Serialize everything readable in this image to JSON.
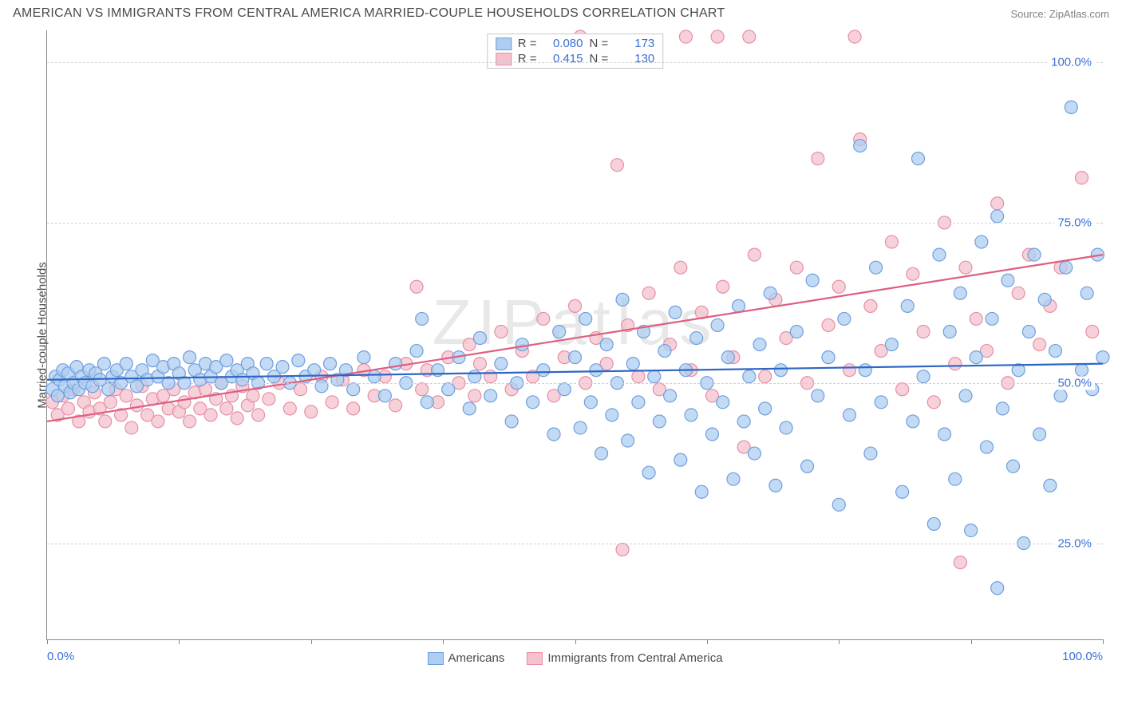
{
  "header": {
    "title": "AMERICAN VS IMMIGRANTS FROM CENTRAL AMERICA MARRIED-COUPLE HOUSEHOLDS CORRELATION CHART",
    "source_prefix": "Source: ",
    "source_name": "ZipAtlas.com"
  },
  "watermark": "ZIPatlas",
  "axes": {
    "y_title": "Married-couple Households",
    "x_min": 0,
    "x_max": 100,
    "y_min": 10,
    "y_max": 105,
    "y_ticks": [
      {
        "v": 25,
        "label": "25.0%"
      },
      {
        "v": 50,
        "label": "50.0%"
      },
      {
        "v": 75,
        "label": "75.0%"
      },
      {
        "v": 100,
        "label": "100.0%"
      }
    ],
    "x_tick_positions": [
      0,
      12.5,
      25,
      37.5,
      50,
      62.5,
      75,
      87.5,
      100
    ],
    "x_tick_labels": [
      {
        "v": 0,
        "label": "0.0%"
      },
      {
        "v": 100,
        "label": "100.0%"
      }
    ],
    "grid_color": "#d0d0d0",
    "axis_color": "#888888",
    "tick_label_color": "#3b6fd6"
  },
  "series": {
    "a": {
      "name": "Americans",
      "fill": "#aecdf0",
      "stroke": "#6f9fde",
      "line_color": "#2f66c4",
      "line_width": 2.2,
      "marker_r": 8,
      "marker_opacity": 0.75,
      "R": "0.080",
      "N": "173",
      "trend": {
        "x1": 0,
        "y1": 50.5,
        "x2": 100,
        "y2": 53.0
      },
      "points": [
        [
          0.5,
          49
        ],
        [
          0.8,
          51
        ],
        [
          1,
          48
        ],
        [
          1.2,
          50.5
        ],
        [
          1.5,
          52
        ],
        [
          1.7,
          49.5
        ],
        [
          2,
          51.5
        ],
        [
          2.2,
          48.5
        ],
        [
          2.5,
          50
        ],
        [
          2.8,
          52.5
        ],
        [
          3,
          49
        ],
        [
          3.3,
          51
        ],
        [
          3.6,
          50
        ],
        [
          4,
          52
        ],
        [
          4.3,
          49.5
        ],
        [
          4.6,
          51.5
        ],
        [
          5,
          50.5
        ],
        [
          5.4,
          53
        ],
        [
          5.8,
          49
        ],
        [
          6.2,
          51
        ],
        [
          6.6,
          52
        ],
        [
          7,
          50
        ],
        [
          7.5,
          53
        ],
        [
          8,
          51
        ],
        [
          8.5,
          49.5
        ],
        [
          9,
          52
        ],
        [
          9.5,
          50.5
        ],
        [
          10,
          53.5
        ],
        [
          10.5,
          51
        ],
        [
          11,
          52.5
        ],
        [
          11.5,
          50
        ],
        [
          12,
          53
        ],
        [
          12.5,
          51.5
        ],
        [
          13,
          50
        ],
        [
          13.5,
          54
        ],
        [
          14,
          52
        ],
        [
          14.5,
          50.5
        ],
        [
          15,
          53
        ],
        [
          15.5,
          51
        ],
        [
          16,
          52.5
        ],
        [
          16.5,
          50
        ],
        [
          17,
          53.5
        ],
        [
          17.5,
          51
        ],
        [
          18,
          52
        ],
        [
          18.5,
          50.5
        ],
        [
          19,
          53
        ],
        [
          19.5,
          51.5
        ],
        [
          20,
          50
        ],
        [
          20.8,
          53
        ],
        [
          21.5,
          51
        ],
        [
          22.3,
          52.5
        ],
        [
          23,
          50
        ],
        [
          23.8,
          53.5
        ],
        [
          24.5,
          51
        ],
        [
          25.3,
          52
        ],
        [
          26,
          49.5
        ],
        [
          26.8,
          53
        ],
        [
          27.5,
          50.5
        ],
        [
          28.3,
          52
        ],
        [
          29,
          49
        ],
        [
          30,
          54
        ],
        [
          31,
          51
        ],
        [
          32,
          48
        ],
        [
          33,
          53
        ],
        [
          34,
          50
        ],
        [
          35,
          55
        ],
        [
          35.5,
          60
        ],
        [
          36,
          47
        ],
        [
          37,
          52
        ],
        [
          38,
          49
        ],
        [
          39,
          54
        ],
        [
          40,
          46
        ],
        [
          40.5,
          51
        ],
        [
          41,
          57
        ],
        [
          42,
          48
        ],
        [
          43,
          53
        ],
        [
          44,
          44
        ],
        [
          44.5,
          50
        ],
        [
          45,
          56
        ],
        [
          46,
          47
        ],
        [
          47,
          52
        ],
        [
          48,
          42
        ],
        [
          48.5,
          58
        ],
        [
          49,
          49
        ],
        [
          50,
          54
        ],
        [
          50.5,
          43
        ],
        [
          51,
          60
        ],
        [
          51.5,
          47
        ],
        [
          52,
          52
        ],
        [
          52.5,
          39
        ],
        [
          53,
          56
        ],
        [
          53.5,
          45
        ],
        [
          54,
          50
        ],
        [
          54.5,
          63
        ],
        [
          55,
          41
        ],
        [
          55.5,
          53
        ],
        [
          56,
          47
        ],
        [
          56.5,
          58
        ],
        [
          57,
          36
        ],
        [
          57.5,
          51
        ],
        [
          58,
          44
        ],
        [
          58.5,
          55
        ],
        [
          59,
          48
        ],
        [
          59.5,
          61
        ],
        [
          60,
          38
        ],
        [
          60.5,
          52
        ],
        [
          61,
          45
        ],
        [
          61.5,
          57
        ],
        [
          62,
          33
        ],
        [
          62.5,
          50
        ],
        [
          63,
          42
        ],
        [
          63.5,
          59
        ],
        [
          64,
          47
        ],
        [
          64.5,
          54
        ],
        [
          65,
          35
        ],
        [
          65.5,
          62
        ],
        [
          66,
          44
        ],
        [
          66.5,
          51
        ],
        [
          67,
          39
        ],
        [
          67.5,
          56
        ],
        [
          68,
          46
        ],
        [
          68.5,
          64
        ],
        [
          69,
          34
        ],
        [
          69.5,
          52
        ],
        [
          70,
          43
        ],
        [
          71,
          58
        ],
        [
          72,
          37
        ],
        [
          72.5,
          66
        ],
        [
          73,
          48
        ],
        [
          74,
          54
        ],
        [
          75,
          31
        ],
        [
          75.5,
          60
        ],
        [
          76,
          45
        ],
        [
          77,
          87
        ],
        [
          77.5,
          52
        ],
        [
          78,
          39
        ],
        [
          78.5,
          68
        ],
        [
          79,
          47
        ],
        [
          80,
          56
        ],
        [
          81,
          33
        ],
        [
          81.5,
          62
        ],
        [
          82,
          44
        ],
        [
          82.5,
          85
        ],
        [
          83,
          51
        ],
        [
          84,
          28
        ],
        [
          84.5,
          70
        ],
        [
          85,
          42
        ],
        [
          85.5,
          58
        ],
        [
          86,
          35
        ],
        [
          86.5,
          64
        ],
        [
          87,
          48
        ],
        [
          87.5,
          27
        ],
        [
          88,
          54
        ],
        [
          88.5,
          72
        ],
        [
          89,
          40
        ],
        [
          89.5,
          60
        ],
        [
          90,
          76
        ],
        [
          90,
          18
        ],
        [
          90.5,
          46
        ],
        [
          91,
          66
        ],
        [
          91.5,
          37
        ],
        [
          92,
          52
        ],
        [
          92.5,
          25
        ],
        [
          93,
          58
        ],
        [
          93.5,
          70
        ],
        [
          94,
          42
        ],
        [
          94.5,
          63
        ],
        [
          95,
          34
        ],
        [
          95.5,
          55
        ],
        [
          96,
          48
        ],
        [
          96.5,
          68
        ],
        [
          97,
          93
        ],
        [
          98,
          52
        ],
        [
          98.5,
          64
        ],
        [
          99,
          49
        ],
        [
          99.5,
          70
        ],
        [
          100,
          54
        ]
      ]
    },
    "b": {
      "name": "Immigrants from Central America",
      "fill": "#f4c2ce",
      "stroke": "#e68fa5",
      "line_color": "#de5f7f",
      "line_width": 2.2,
      "marker_r": 8,
      "marker_opacity": 0.75,
      "R": "0.415",
      "N": "130",
      "trend": {
        "x1": 0,
        "y1": 44.0,
        "x2": 100,
        "y2": 70.0
      },
      "points": [
        [
          0.5,
          47
        ],
        [
          1,
          45
        ],
        [
          1.5,
          48
        ],
        [
          2,
          46
        ],
        [
          2.5,
          49
        ],
        [
          3,
          44
        ],
        [
          3.5,
          47
        ],
        [
          4,
          45.5
        ],
        [
          4.5,
          48.5
        ],
        [
          5,
          46
        ],
        [
          5.5,
          44
        ],
        [
          6,
          47
        ],
        [
          6.5,
          49
        ],
        [
          7,
          45
        ],
        [
          7.5,
          48
        ],
        [
          8,
          43
        ],
        [
          8.5,
          46.5
        ],
        [
          9,
          49.5
        ],
        [
          9.5,
          45
        ],
        [
          10,
          47.5
        ],
        [
          10.5,
          44
        ],
        [
          11,
          48
        ],
        [
          11.5,
          46
        ],
        [
          12,
          49
        ],
        [
          12.5,
          45.5
        ],
        [
          13,
          47
        ],
        [
          13.5,
          44
        ],
        [
          14,
          48.5
        ],
        [
          14.5,
          46
        ],
        [
          15,
          49
        ],
        [
          15.5,
          45
        ],
        [
          16,
          47.5
        ],
        [
          16.5,
          50
        ],
        [
          17,
          46
        ],
        [
          17.5,
          48
        ],
        [
          18,
          44.5
        ],
        [
          18.5,
          49.5
        ],
        [
          19,
          46.5
        ],
        [
          19.5,
          48
        ],
        [
          20,
          45
        ],
        [
          21,
          47.5
        ],
        [
          22,
          50
        ],
        [
          23,
          46
        ],
        [
          24,
          49
        ],
        [
          25,
          45.5
        ],
        [
          26,
          51
        ],
        [
          27,
          47
        ],
        [
          28,
          50.5
        ],
        [
          29,
          46
        ],
        [
          30,
          52
        ],
        [
          31,
          48
        ],
        [
          32,
          51
        ],
        [
          33,
          46.5
        ],
        [
          34,
          53
        ],
        [
          35,
          65
        ],
        [
          35.5,
          49
        ],
        [
          36,
          52
        ],
        [
          37,
          47
        ],
        [
          38,
          54
        ],
        [
          39,
          50
        ],
        [
          40,
          56
        ],
        [
          40.5,
          48
        ],
        [
          41,
          53
        ],
        [
          42,
          51
        ],
        [
          43,
          58
        ],
        [
          44,
          49
        ],
        [
          45,
          55
        ],
        [
          46,
          51
        ],
        [
          47,
          60
        ],
        [
          48,
          48
        ],
        [
          49,
          54
        ],
        [
          50,
          62
        ],
        [
          50.5,
          104
        ],
        [
          51,
          50
        ],
        [
          52,
          57
        ],
        [
          53,
          53
        ],
        [
          54,
          84
        ],
        [
          54.5,
          24
        ],
        [
          55,
          59
        ],
        [
          56,
          51
        ],
        [
          57,
          64
        ],
        [
          58,
          49
        ],
        [
          59,
          56
        ],
        [
          60,
          68
        ],
        [
          60.5,
          104
        ],
        [
          61,
          52
        ],
        [
          62,
          61
        ],
        [
          63,
          48
        ],
        [
          63.5,
          104
        ],
        [
          64,
          65
        ],
        [
          65,
          54
        ],
        [
          66,
          40
        ],
        [
          66.5,
          104
        ],
        [
          67,
          70
        ],
        [
          68,
          51
        ],
        [
          69,
          63
        ],
        [
          70,
          57
        ],
        [
          71,
          68
        ],
        [
          72,
          50
        ],
        [
          73,
          85
        ],
        [
          74,
          59
        ],
        [
          75,
          65
        ],
        [
          76,
          52
        ],
        [
          76.5,
          104
        ],
        [
          77,
          88
        ],
        [
          78,
          62
        ],
        [
          79,
          55
        ],
        [
          80,
          72
        ],
        [
          81,
          49
        ],
        [
          82,
          67
        ],
        [
          83,
          58
        ],
        [
          84,
          47
        ],
        [
          85,
          75
        ],
        [
          86,
          53
        ],
        [
          86.5,
          22
        ],
        [
          87,
          68
        ],
        [
          88,
          60
        ],
        [
          89,
          55
        ],
        [
          90,
          78
        ],
        [
          91,
          50
        ],
        [
          92,
          64
        ],
        [
          93,
          70
        ],
        [
          94,
          56
        ],
        [
          95,
          62
        ],
        [
          96,
          68
        ],
        [
          98,
          82
        ],
        [
          99,
          58
        ]
      ]
    }
  },
  "stats_legend": {
    "rows": [
      {
        "series": "a",
        "r_label": "R =",
        "n_label": "N ="
      },
      {
        "series": "b",
        "r_label": "R =",
        "n_label": "N ="
      }
    ]
  },
  "bottom_legend": {
    "items": [
      {
        "series": "a"
      },
      {
        "series": "b"
      }
    ]
  }
}
